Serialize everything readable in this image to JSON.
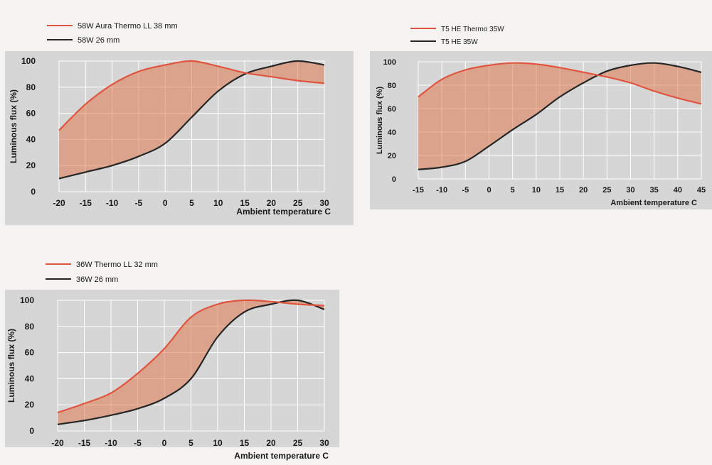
{
  "colors": {
    "background": "#f4f3f1",
    "panel": "#d6d6d6",
    "grid": "#ffffff",
    "thermo_line": "#e0553f",
    "standard_line": "#262626",
    "fill": "#e07a50",
    "text": "#1a1a1a"
  },
  "chart_data": [
    {
      "type": "line",
      "title": "",
      "xlabel": "Ambient temperature C",
      "ylabel": "Luminous flux (%)",
      "xlim": [
        -20,
        30
      ],
      "ylim": [
        0,
        100
      ],
      "x_ticks": [
        -20,
        -15,
        -10,
        -5,
        0,
        5,
        10,
        15,
        20,
        25,
        30
      ],
      "y_ticks": [
        0,
        20,
        40,
        60,
        80,
        100
      ],
      "grid": true,
      "legend_position": "top-left, above plot",
      "fill_between": true,
      "series": [
        {
          "name": "58W Aura Thermo LL 38 mm",
          "color": "#e0553f",
          "x": [
            -20,
            -15,
            -10,
            -5,
            0,
            5,
            10,
            15,
            20,
            25,
            30
          ],
          "y": [
            47,
            67,
            82,
            92,
            97,
            100,
            96,
            91,
            88,
            85,
            83
          ]
        },
        {
          "name": "58W 26 mm",
          "color": "#262626",
          "x": [
            -20,
            -15,
            -10,
            -5,
            0,
            5,
            10,
            15,
            20,
            25,
            30
          ],
          "y": [
            10,
            15,
            20,
            27,
            37,
            57,
            77,
            90,
            96,
            100,
            97
          ]
        }
      ]
    },
    {
      "type": "line",
      "title": "",
      "xlabel": "Ambient temperature   C",
      "ylabel": "Luminous flux (%)",
      "xlim": [
        -15,
        45
      ],
      "ylim": [
        0,
        100
      ],
      "x_ticks": [
        -15,
        -10,
        -5,
        0,
        5,
        10,
        15,
        20,
        25,
        30,
        35,
        40,
        45
      ],
      "y_ticks": [
        0,
        20,
        40,
        60,
        80,
        100
      ],
      "grid": true,
      "legend_position": "top-left, above plot",
      "fill_between": true,
      "series": [
        {
          "name": "T5 HE Thermo 35W",
          "color": "#e0553f",
          "x": [
            -15,
            -10,
            -5,
            0,
            5,
            10,
            15,
            20,
            25,
            30,
            35,
            40,
            45
          ],
          "y": [
            70,
            85,
            93,
            97,
            99,
            98,
            95,
            91,
            87,
            82,
            75,
            69,
            64
          ]
        },
        {
          "name": "T5 HE 35W",
          "color": "#262626",
          "x": [
            -15,
            -10,
            -5,
            0,
            5,
            10,
            15,
            20,
            25,
            30,
            35,
            40,
            45
          ],
          "y": [
            8,
            10,
            15,
            28,
            42,
            55,
            70,
            82,
            92,
            97,
            99,
            96,
            91
          ]
        }
      ]
    },
    {
      "type": "line",
      "title": "",
      "xlabel": "Ambient temperature C",
      "ylabel": "Luminous flux (%)",
      "xlim": [
        -20,
        30
      ],
      "ylim": [
        0,
        100
      ],
      "x_ticks": [
        -20,
        -15,
        -10,
        -5,
        0,
        5,
        10,
        15,
        20,
        25,
        30
      ],
      "y_ticks": [
        0,
        20,
        40,
        60,
        80,
        100
      ],
      "grid": true,
      "legend_position": "top-left, above plot",
      "fill_between": true,
      "series": [
        {
          "name": "36W Thermo LL 32 mm",
          "color": "#e0553f",
          "x": [
            -20,
            -15,
            -10,
            -5,
            0,
            5,
            10,
            15,
            20,
            25,
            30
          ],
          "y": [
            14,
            21,
            29,
            44,
            63,
            87,
            97,
            100,
            99,
            97,
            96
          ]
        },
        {
          "name": "36W 26 mm",
          "color": "#262626",
          "x": [
            -20,
            -15,
            -10,
            -5,
            0,
            5,
            10,
            15,
            20,
            25,
            30
          ],
          "y": [
            5,
            8,
            12,
            17,
            25,
            40,
            72,
            91,
            97,
            100,
            93
          ]
        }
      ]
    }
  ]
}
